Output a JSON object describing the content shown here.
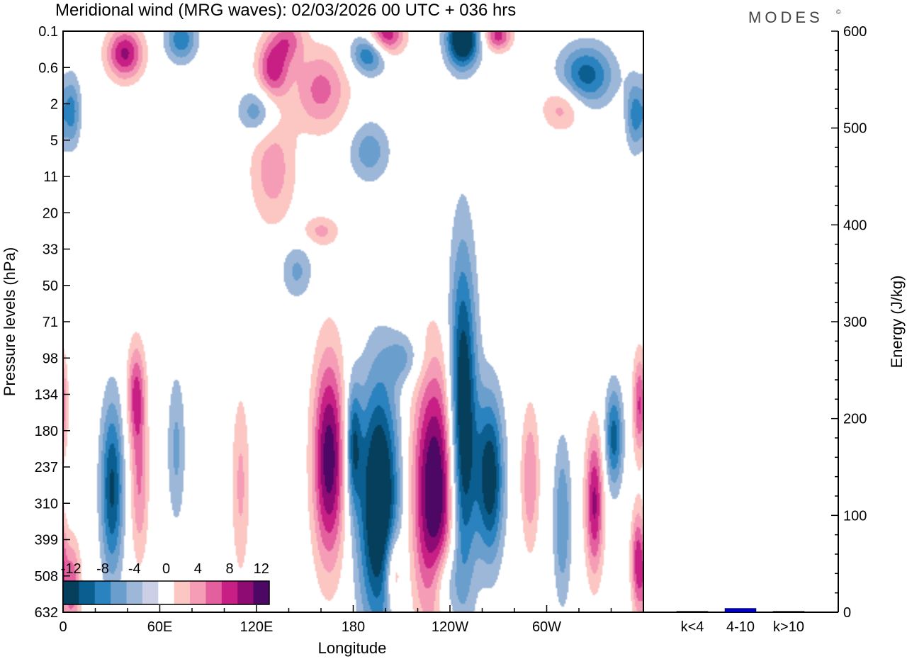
{
  "colors": {
    "neg": [
      "#053f5c",
      "#0b5e90",
      "#2a82bf",
      "#6a9ecd",
      "#9db7d9",
      "#ccd0e6"
    ],
    "pos": [
      "#fcc7c3",
      "#f59cb6",
      "#e35f9e",
      "#c81f84",
      "#8e0b73",
      "#4d0764"
    ],
    "energy_bar": "#0000cc"
  },
  "logo": "MODES",
  "chart_data": {
    "type": "heatmap",
    "title": "Meridional wind (MRG waves):  02/03/2026  00 UTC  + 036 hrs",
    "xlabel": "Longitude",
    "ylabel": "Pressure levels (hPa)",
    "x_ticks": [
      "0",
      "60E",
      "120E",
      "180",
      "120W",
      "60W"
    ],
    "x_tick_lon": [
      0,
      60,
      120,
      180,
      240,
      300
    ],
    "xlim": [
      0,
      360
    ],
    "y_ticks": [
      "0.1",
      "0.6",
      "2",
      "5",
      "11",
      "20",
      "33",
      "50",
      "71",
      "98",
      "134",
      "180",
      "237",
      "310",
      "399",
      "508",
      "632"
    ],
    "colorbar": {
      "labels": [
        "-12",
        "-8",
        "-4",
        "0",
        "4",
        "8",
        "12"
      ],
      "levels": [
        -12,
        -10,
        -8,
        -6,
        -4,
        -2,
        0,
        2,
        4,
        6,
        8,
        10,
        12
      ]
    },
    "features": [
      {
        "lon": 248,
        "lvl": 10.9,
        "amp": -1.0,
        "lw": 6,
        "lh": 3.2
      },
      {
        "lon": 265,
        "lvl": 12.3,
        "amp": -0.8,
        "lw": 6,
        "lh": 1.6
      },
      {
        "lon": 196,
        "lvl": 13.0,
        "amp": -1.0,
        "lw": 9,
        "lh": 2.4
      },
      {
        "lon": 231,
        "lvl": 12.7,
        "amp": 1.0,
        "lw": 10,
        "lh": 2.4
      },
      {
        "lon": 165,
        "lvl": 11.8,
        "amp": 0.9,
        "lw": 7,
        "lh": 2.0
      },
      {
        "lon": 30,
        "lvl": 12.6,
        "amp": -0.7,
        "lw": 5,
        "lh": 1.7
      },
      {
        "lon": 45,
        "lvl": 10.0,
        "amp": 0.55,
        "lw": 4,
        "lh": 1.0
      },
      {
        "lon": 47,
        "lvl": 12.5,
        "amp": 0.4,
        "lw": 4,
        "lh": 1.5
      },
      {
        "lon": 330,
        "lvl": 13.0,
        "amp": 0.7,
        "lw": 4,
        "lh": 1.4
      },
      {
        "lon": 342,
        "lvl": 11.2,
        "amp": -0.6,
        "lw": 4,
        "lh": 1.0
      },
      {
        "lon": 310,
        "lvl": 13.5,
        "amp": -0.4,
        "lw": 4,
        "lh": 1.6
      },
      {
        "lon": 290,
        "lvl": 12.3,
        "amp": 0.4,
        "lw": 4,
        "lh": 1.4
      },
      {
        "lon": 358,
        "lvl": 10.3,
        "amp": 0.55,
        "lw": 3,
        "lh": 1.0
      },
      {
        "lon": 357,
        "lvl": 14.6,
        "amp": 0.6,
        "lw": 3,
        "lh": 1.0
      },
      {
        "lon": 5,
        "lvl": 15.3,
        "amp": 0.5,
        "lw": 4,
        "lh": 0.9
      },
      {
        "lon": 205,
        "lvl": 14.9,
        "amp": 0.5,
        "lw": 4,
        "lh": 0.8
      },
      {
        "lon": 237,
        "lvl": 15.2,
        "amp": -0.4,
        "lw": 6,
        "lh": 0.8
      },
      {
        "lon": 70,
        "lvl": 11.5,
        "amp": -0.3,
        "lw": 4,
        "lh": 1.5
      },
      {
        "lon": 110,
        "lvl": 12.5,
        "amp": 0.3,
        "lw": 4,
        "lh": 1.8
      },
      {
        "lon": 180,
        "lvl": 11.4,
        "amp": -0.6,
        "lw": 3.5,
        "lh": 1.2
      },
      {
        "lon": 212,
        "lvl": 9.0,
        "amp": -0.3,
        "lw": 8,
        "lh": 0.5
      },
      {
        "lon": 38,
        "lvl": 0.6,
        "amp": 0.7,
        "lw": 8,
        "lh": 0.5
      },
      {
        "lon": 73,
        "lvl": 0.2,
        "amp": -0.5,
        "lw": 7,
        "lh": 0.45
      },
      {
        "lon": 140,
        "lvl": 0.2,
        "amp": 0.4,
        "lw": 7,
        "lh": 0.45
      },
      {
        "lon": 200,
        "lvl": 0.1,
        "amp": 0.7,
        "lw": 8,
        "lh": 0.4
      },
      {
        "lon": 248,
        "lvl": 0.2,
        "amp": -1.0,
        "lw": 7,
        "lh": 0.55
      },
      {
        "lon": 270,
        "lvl": 0.1,
        "amp": 0.6,
        "lw": 6,
        "lh": 0.3
      },
      {
        "lon": 190,
        "lvl": 0.6,
        "amp": -0.6,
        "lw": 8,
        "lh": 0.4
      },
      {
        "lon": 130,
        "lvl": 1.0,
        "amp": 0.6,
        "lw": 7,
        "lh": 0.6
      },
      {
        "lon": 160,
        "lvl": 1.6,
        "amp": 0.45,
        "lw": 12,
        "lh": 0.8
      },
      {
        "lon": 120,
        "lvl": 2.2,
        "amp": -0.4,
        "lw": 8,
        "lh": 0.45
      },
      {
        "lon": 325,
        "lvl": 1.2,
        "amp": -0.6,
        "lw": 12,
        "lh": 0.6
      },
      {
        "lon": 310,
        "lvl": 2.1,
        "amp": 0.35,
        "lw": 9,
        "lh": 0.45
      },
      {
        "lon": 5,
        "lvl": 2.2,
        "amp": -0.45,
        "lw": 4,
        "lh": 0.7
      },
      {
        "lon": 355,
        "lvl": 2.3,
        "amp": -0.45,
        "lw": 4,
        "lh": 0.7
      },
      {
        "lon": 190,
        "lvl": 3.3,
        "amp": -0.35,
        "lw": 9,
        "lh": 0.6
      },
      {
        "lon": 130,
        "lvl": 3.8,
        "amp": 0.35,
        "lw": 10,
        "lh": 1.1
      },
      {
        "lon": 145,
        "lvl": 6.6,
        "amp": -0.3,
        "lw": 7,
        "lh": 0.55
      },
      {
        "lon": 160,
        "lvl": 5.5,
        "amp": 0.3,
        "lw": 8,
        "lh": 0.3
      }
    ],
    "energy_axis": {
      "label": "Energy (J/kg)",
      "ticks": [
        0,
        100,
        200,
        300,
        400,
        500,
        600
      ],
      "ylim": [
        0,
        600
      ]
    },
    "energy_bars": {
      "categories": [
        "k<4",
        "4-10",
        "k>10"
      ],
      "values": [
        1,
        4,
        1
      ]
    }
  }
}
